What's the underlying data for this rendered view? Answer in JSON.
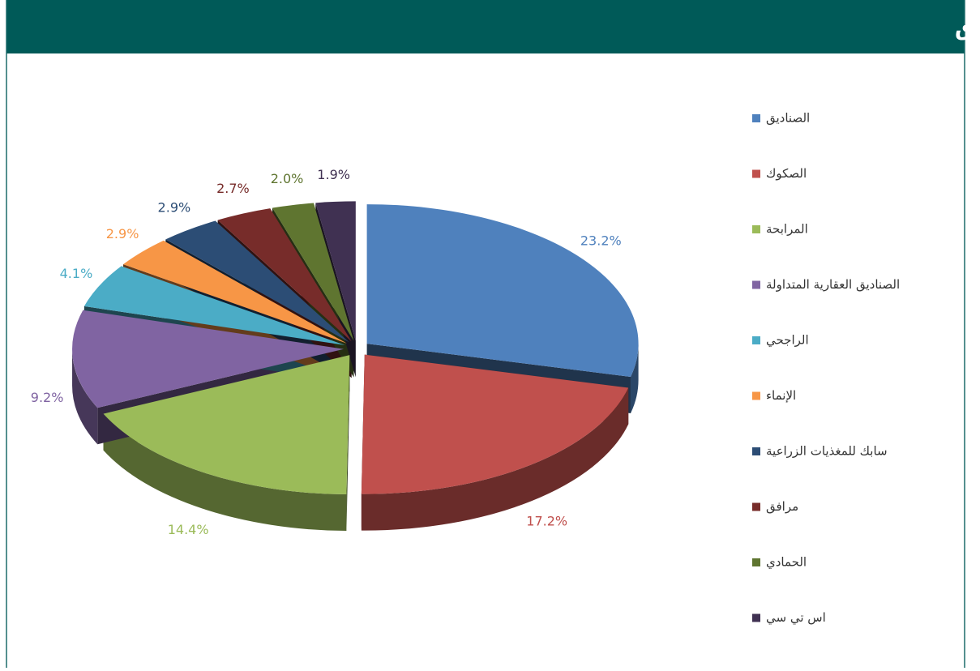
{
  "chart_data": {
    "type": "pie",
    "title": "أكبر عشرة استثمارات للصندوق",
    "categories": [
      "الصناديق",
      "الصكوك",
      "المرابحة",
      "الصناديق العقارية المتداولة",
      "الراجحي",
      "الإنماء",
      "سابك للمغذيات الزراعية",
      "مرافق",
      "الحمادي",
      "اس تي سي"
    ],
    "values": [
      23.2,
      17.2,
      14.4,
      9.2,
      4.1,
      2.9,
      2.9,
      2.7,
      2.0,
      1.9
    ],
    "value_labels": [
      "23.2%",
      "17.2%",
      "14.4%",
      "9.2%",
      "4.1%",
      "2.9%",
      "2.9%",
      "2.7%",
      "2.0%",
      "1.9%"
    ],
    "colors": [
      "#4f81bd",
      "#c0504d",
      "#9bbb59",
      "#8064a2",
      "#4bacc6",
      "#f79646",
      "#2c4d75",
      "#772c2a",
      "#5f7530",
      "#403152"
    ],
    "legend": "right"
  }
}
